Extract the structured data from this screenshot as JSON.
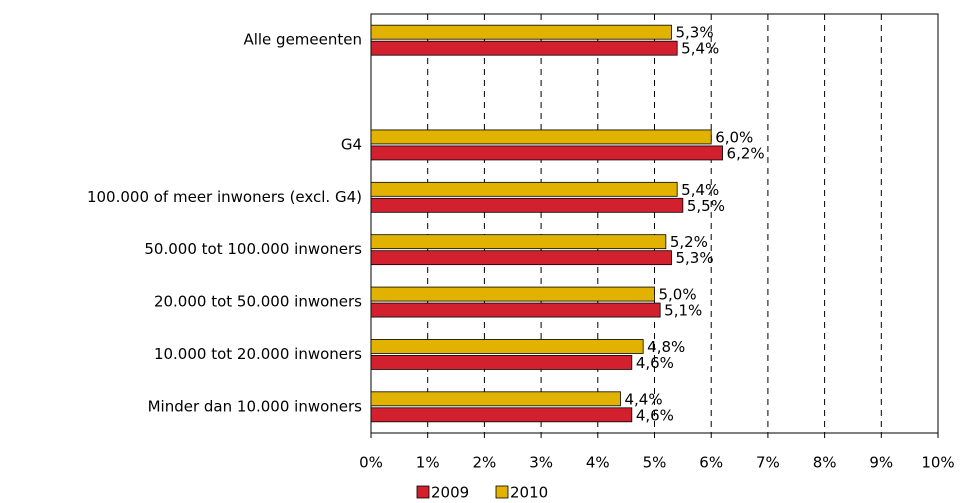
{
  "chart_data": {
    "type": "barh",
    "categories": [
      "Alle gemeenten",
      null,
      "G4",
      "100.000 of meer inwoners (excl. G4)",
      "50.000 tot 100.000 inwoners",
      "20.000 tot 50.000 inwoners",
      "10.000 tot 20.000 inwoners",
      "Minder dan 10.000 inwoners"
    ],
    "series": [
      {
        "name": "2009",
        "color": "#d2202f",
        "values": [
          5.4,
          null,
          6.2,
          5.5,
          5.3,
          5.1,
          4.6,
          4.6
        ],
        "value_labels": [
          "5,4%",
          null,
          "6,2%",
          "5,5%",
          "5,3%",
          "5,1%",
          "4,6%",
          "4,6%"
        ]
      },
      {
        "name": "2010",
        "color": "#e2b200",
        "values": [
          5.3,
          null,
          6.0,
          5.4,
          5.2,
          5.0,
          4.8,
          4.4
        ],
        "value_labels": [
          "5,3%",
          null,
          "6,0%",
          "5,4%",
          "5,2%",
          "5,0%",
          "4,8%",
          "4,4%"
        ]
      }
    ],
    "xlim": [
      0,
      10
    ],
    "xticks": [
      {
        "value": 0,
        "label": "0%"
      },
      {
        "value": 1,
        "label": "1%"
      },
      {
        "value": 2,
        "label": "2%"
      },
      {
        "value": 3,
        "label": "3%"
      },
      {
        "value": 4,
        "label": "4%"
      },
      {
        "value": 5,
        "label": "5%"
      },
      {
        "value": 6,
        "label": "6%"
      },
      {
        "value": 7,
        "label": "7%"
      },
      {
        "value": 8,
        "label": "8%"
      },
      {
        "value": 9,
        "label": "9%"
      },
      {
        "value": 10,
        "label": "10%"
      }
    ],
    "grid": true,
    "legend": "bottom"
  }
}
